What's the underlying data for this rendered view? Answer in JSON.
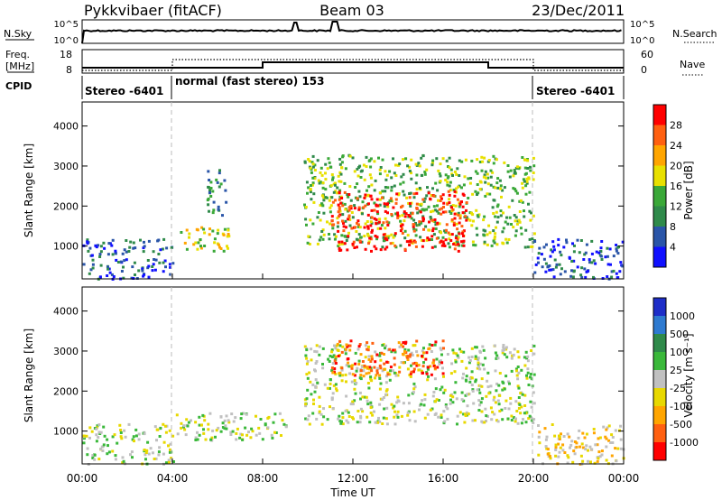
{
  "header": {
    "station": "Pykkvibaer (fitACF)",
    "beam": "Beam 03",
    "date": "23/Dec/2011"
  },
  "strips": {
    "nsky_label": "N.Sky",
    "nsky_ticks": [
      "10^5",
      "10^0"
    ],
    "nsearch_label": "N.Search",
    "freq_label_1": "Freq.",
    "freq_label_2": "[MHz]",
    "freq_ticks": [
      "18",
      "8"
    ],
    "nave_ticks": [
      "60",
      "0"
    ],
    "nave_label": "Nave",
    "cpid_label": "CPID",
    "cpid_segments": [
      {
        "label": "Stereo -6401",
        "start_hour": 0,
        "end_hour": 4
      },
      {
        "label": "normal (fast stereo) 153",
        "start_hour": 4,
        "end_hour": 20
      },
      {
        "label": "Stereo -6401",
        "start_hour": 20,
        "end_hour": 24
      }
    ]
  },
  "colors": {
    "power_scale": [
      "#1010ff",
      "#2a55a8",
      "#2f8a4a",
      "#3aa838",
      "#e8e000",
      "#ffa500",
      "#ff6010",
      "#ff0000"
    ],
    "velocity_scale": [
      "#1e2ec8",
      "#2e7ad0",
      "#2f8a4a",
      "#3ab83a",
      "#c0c0c0",
      "#e8d800",
      "#ffa500",
      "#ff6010",
      "#ff0000"
    ]
  },
  "chart_data": [
    {
      "type": "heatmap",
      "panel": "power",
      "xlabel": "",
      "ylabel": "Slant Range [km]",
      "xlim_hours": [
        0,
        24
      ],
      "ylim": [
        180,
        4600
      ],
      "yticks": [
        1000,
        2000,
        3000,
        4000
      ],
      "colorbar_label": "Power [dB]",
      "colorbar_ticks": [
        "4",
        "8",
        "12",
        "16",
        "20",
        "24",
        "28"
      ],
      "echo_regions": [
        {
          "t0": 0,
          "t1": 4,
          "r0": 200,
          "r1": 1200,
          "level": 1
        },
        {
          "t0": 4,
          "t1": 6.5,
          "r0": 900,
          "r1": 1500,
          "level": 4
        },
        {
          "t0": 5.5,
          "t1": 6.4,
          "r0": 1800,
          "r1": 3000,
          "level": 2
        },
        {
          "t0": 9.8,
          "t1": 20,
          "r0": 1000,
          "r1": 3300,
          "level": 3
        },
        {
          "t0": 11,
          "t1": 17,
          "r0": 900,
          "r1": 2400,
          "level": 7
        },
        {
          "t0": 20,
          "t1": 24,
          "r0": 200,
          "r1": 1200,
          "level": 1
        }
      ]
    },
    {
      "type": "heatmap",
      "panel": "velocity",
      "xlabel": "Time UT",
      "ylabel": "Slant Range [km]",
      "xlim_hours": [
        0,
        24
      ],
      "ylim": [
        180,
        4600
      ],
      "yticks": [
        1000,
        2000,
        3000,
        4000
      ],
      "xticks": [
        "00:00",
        "04:00",
        "08:00",
        "12:00",
        "16:00",
        "20:00",
        "00:00"
      ],
      "colorbar_label": "Velocity [m s⁻¹]",
      "colorbar_ticks": [
        "1000",
        "500",
        "100",
        "25",
        "-25",
        "-100",
        "-500",
        "-1000"
      ],
      "echo_regions": [
        {
          "t0": 0,
          "t1": 4,
          "r0": 200,
          "r1": 1200,
          "level": 4
        },
        {
          "t0": 4,
          "t1": 9,
          "r0": 800,
          "r1": 1500,
          "level": 4
        },
        {
          "t0": 9.8,
          "t1": 20,
          "r0": 1200,
          "r1": 3200,
          "level": 4
        },
        {
          "t0": 11,
          "t1": 16,
          "r0": 2400,
          "r1": 3300,
          "level": 7
        },
        {
          "t0": 20,
          "t1": 24,
          "r0": 200,
          "r1": 1200,
          "level": 5
        }
      ]
    }
  ]
}
